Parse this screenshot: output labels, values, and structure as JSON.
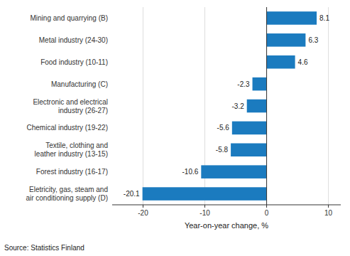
{
  "chart_data": {
    "type": "bar",
    "orientation": "horizontal",
    "categories": [
      "Eletricity, gas, steam and\nair conditioning supply (D)",
      "Forest industry (16-17)",
      "Textile, clothing and\nleather industry (13-15)",
      "Chemical industry (19-22)",
      "Electronic and electrical\nindustry (26-27)",
      "Manufacturing (C)",
      "Food industry (10-11)",
      "Metal industry (24-30)",
      "Mining and quarrying (B)"
    ],
    "values": [
      -20.1,
      -10.6,
      -5.8,
      -5.6,
      -3.2,
      -2.3,
      4.6,
      6.3,
      8.1
    ],
    "color": "#1b7bbf",
    "xlabel": "Year-on-year change, %",
    "xlim": [
      -25,
      12
    ],
    "xticks": [
      -20,
      -10,
      0,
      10
    ],
    "grid": true,
    "data_labels": true,
    "source": "Source: Statistics Finland"
  }
}
